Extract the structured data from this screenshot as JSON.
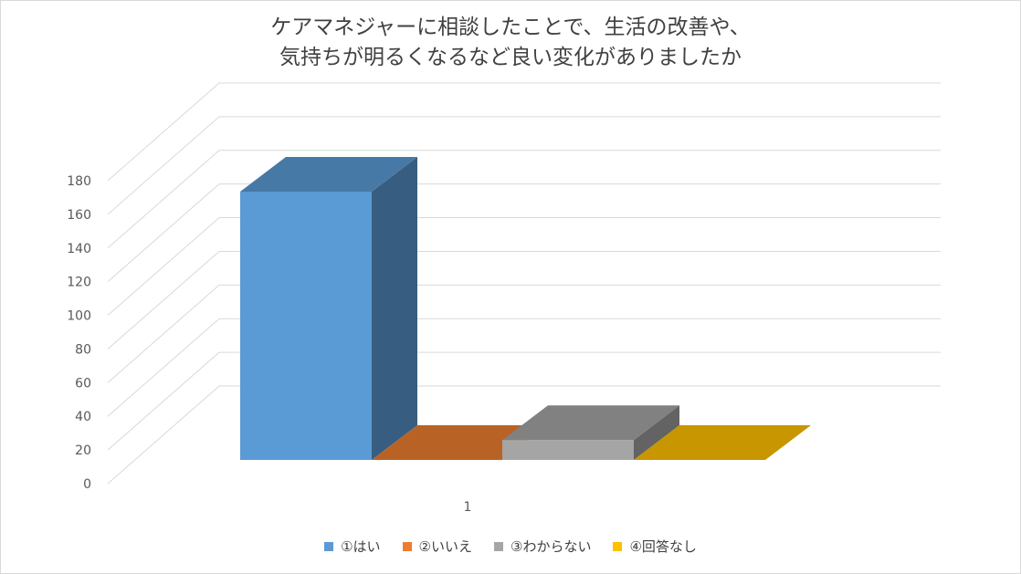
{
  "chart_data": {
    "type": "bar",
    "title_lines": [
      "ケアマネジャーに相談したことで、生活の改善や、",
      "気持ちが明るくなるなど良い変化がありましたか"
    ],
    "categories": [
      "1"
    ],
    "series": [
      {
        "name": "①はい",
        "values": [
          162
        ],
        "color": "#5b9bd5"
      },
      {
        "name": "②いいえ",
        "values": [
          0
        ],
        "color": "#ed7d31"
      },
      {
        "name": "③わからない",
        "values": [
          12
        ],
        "color": "#a5a5a5"
      },
      {
        "name": "④回答なし",
        "values": [
          0
        ],
        "color": "#ffc000"
      }
    ],
    "ylim": [
      0,
      180
    ],
    "yticks": [
      0,
      20,
      40,
      60,
      80,
      100,
      120,
      140,
      160,
      180
    ],
    "grid": true,
    "legend_position": "bottom",
    "projection": "3d"
  }
}
